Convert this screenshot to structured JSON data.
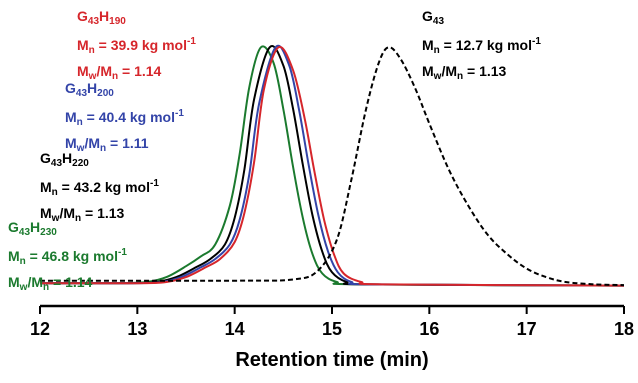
{
  "chart_data": {
    "type": "line",
    "title": "",
    "xlabel": "Retention time (min)",
    "ylabel": "",
    "xlim": [
      12,
      18
    ],
    "ylim": [
      0,
      1.05
    ],
    "xticks": [
      "12",
      "13",
      "14",
      "15",
      "16",
      "17",
      "18"
    ],
    "grid": false,
    "legend": "none",
    "series": [
      {
        "name": "G43H230",
        "color": "#1b7a2e",
        "dash": "solid",
        "points": [
          [
            12.0,
            0.02
          ],
          [
            12.8,
            0.02
          ],
          [
            13.1,
            0.025
          ],
          [
            13.3,
            0.045
          ],
          [
            13.5,
            0.09
          ],
          [
            13.65,
            0.13
          ],
          [
            13.8,
            0.18
          ],
          [
            13.95,
            0.34
          ],
          [
            14.05,
            0.55
          ],
          [
            14.15,
            0.83
          ],
          [
            14.27,
            0.995
          ],
          [
            14.4,
            0.93
          ],
          [
            14.5,
            0.74
          ],
          [
            14.6,
            0.5
          ],
          [
            14.7,
            0.29
          ],
          [
            14.8,
            0.14
          ],
          [
            14.9,
            0.06
          ],
          [
            15.05,
            0.025
          ],
          [
            15.3,
            0.015
          ],
          [
            18.0,
            0.01
          ]
        ]
      },
      {
        "name": "G43H220",
        "color": "#000000",
        "dash": "solid",
        "points": [
          [
            12.0,
            0.02
          ],
          [
            12.9,
            0.02
          ],
          [
            13.2,
            0.025
          ],
          [
            13.4,
            0.045
          ],
          [
            13.6,
            0.085
          ],
          [
            13.75,
            0.12
          ],
          [
            13.9,
            0.18
          ],
          [
            14.0,
            0.29
          ],
          [
            14.1,
            0.49
          ],
          [
            14.2,
            0.78
          ],
          [
            14.36,
            0.995
          ],
          [
            14.5,
            0.92
          ],
          [
            14.6,
            0.74
          ],
          [
            14.7,
            0.51
          ],
          [
            14.8,
            0.3
          ],
          [
            14.9,
            0.15
          ],
          [
            15.0,
            0.065
          ],
          [
            15.15,
            0.025
          ],
          [
            15.4,
            0.015
          ],
          [
            18.0,
            0.01
          ]
        ]
      },
      {
        "name": "G43H200",
        "color": "#3344a8",
        "dash": "solid",
        "points": [
          [
            12.0,
            0.02
          ],
          [
            12.95,
            0.02
          ],
          [
            13.25,
            0.025
          ],
          [
            13.45,
            0.045
          ],
          [
            13.65,
            0.085
          ],
          [
            13.8,
            0.12
          ],
          [
            13.95,
            0.18
          ],
          [
            14.05,
            0.28
          ],
          [
            14.15,
            0.47
          ],
          [
            14.25,
            0.76
          ],
          [
            14.42,
            0.995
          ],
          [
            14.56,
            0.92
          ],
          [
            14.66,
            0.74
          ],
          [
            14.76,
            0.51
          ],
          [
            14.86,
            0.3
          ],
          [
            14.96,
            0.15
          ],
          [
            15.06,
            0.065
          ],
          [
            15.2,
            0.025
          ],
          [
            15.45,
            0.015
          ],
          [
            18.0,
            0.01
          ]
        ]
      },
      {
        "name": "G43H190",
        "color": "#d6262b",
        "dash": "solid",
        "points": [
          [
            12.0,
            0.02
          ],
          [
            13.0,
            0.02
          ],
          [
            13.3,
            0.025
          ],
          [
            13.5,
            0.045
          ],
          [
            13.7,
            0.085
          ],
          [
            13.85,
            0.12
          ],
          [
            14.0,
            0.19
          ],
          [
            14.1,
            0.31
          ],
          [
            14.2,
            0.52
          ],
          [
            14.3,
            0.82
          ],
          [
            14.45,
            0.995
          ],
          [
            14.6,
            0.9
          ],
          [
            14.72,
            0.7
          ],
          [
            14.82,
            0.48
          ],
          [
            14.92,
            0.28
          ],
          [
            15.02,
            0.14
          ],
          [
            15.12,
            0.06
          ],
          [
            15.3,
            0.025
          ],
          [
            15.55,
            0.015
          ],
          [
            18.0,
            0.01
          ]
        ]
      },
      {
        "name": "G43",
        "color": "#000000",
        "dash": "dashed",
        "points": [
          [
            12.0,
            0.03
          ],
          [
            14.0,
            0.03
          ],
          [
            14.6,
            0.035
          ],
          [
            14.85,
            0.07
          ],
          [
            15.05,
            0.2
          ],
          [
            15.2,
            0.45
          ],
          [
            15.35,
            0.74
          ],
          [
            15.48,
            0.93
          ],
          [
            15.58,
            0.995
          ],
          [
            15.7,
            0.95
          ],
          [
            15.85,
            0.83
          ],
          [
            16.0,
            0.68
          ],
          [
            16.2,
            0.49
          ],
          [
            16.4,
            0.34
          ],
          [
            16.6,
            0.22
          ],
          [
            16.8,
            0.14
          ],
          [
            17.0,
            0.08
          ],
          [
            17.2,
            0.045
          ],
          [
            17.4,
            0.025
          ],
          [
            17.7,
            0.015
          ],
          [
            18.0,
            0.012
          ]
        ]
      }
    ],
    "annotations": [
      {
        "id": "g43h190",
        "color": "#d6262b",
        "title": "G",
        "t_sub1": "43",
        "t_mid": "H",
        "t_sub2": "190",
        "mn_pre": "M",
        "mn_sub": "n",
        "mn_val": " = 39.9 kg mol",
        "mn_sup": "-1",
        "d_pre1": "M",
        "d_sub1": "w",
        "d_mid": "/M",
        "d_sub2": "n",
        "d_val": " = 1.14"
      },
      {
        "id": "g43h200",
        "color": "#3344a8",
        "title": "G",
        "t_sub1": "43",
        "t_mid": "H",
        "t_sub2": "200",
        "mn_pre": "M",
        "mn_sub": "n",
        "mn_val": " = 40.4 kg mol",
        "mn_sup": "-1",
        "d_pre1": "M",
        "d_sub1": "w",
        "d_mid": "/M",
        "d_sub2": "n",
        "d_val": " = 1.11"
      },
      {
        "id": "g43h220",
        "color": "#000000",
        "title": "G",
        "t_sub1": "43",
        "t_mid": "H",
        "t_sub2": "220",
        "mn_pre": "M",
        "mn_sub": "n",
        "mn_val": " = 43.2 kg mol",
        "mn_sup": "-1",
        "d_pre1": "M",
        "d_sub1": "w",
        "d_mid": "/M",
        "d_sub2": "n",
        "d_val": " = 1.13"
      },
      {
        "id": "g43h230",
        "color": "#1b7a2e",
        "title": "G",
        "t_sub1": "43",
        "t_mid": "H",
        "t_sub2": "230",
        "mn_pre": "M",
        "mn_sub": "n",
        "mn_val": " = 46.8 kg mol",
        "mn_sup": "-1",
        "d_pre1": "M",
        "d_sub1": "w",
        "d_mid": "/M",
        "d_sub2": "n",
        "d_val": " = 1.14"
      },
      {
        "id": "g43",
        "color": "#000000",
        "title": "G",
        "t_sub1": "43",
        "t_mid": "",
        "t_sub2": "",
        "mn_pre": "M",
        "mn_sub": "n",
        "mn_val": " = 12.7 kg mol",
        "mn_sup": "-1",
        "d_pre1": "M",
        "d_sub1": "w",
        "d_mid": "/M",
        "d_sub2": "n",
        "d_val": " = 1.13"
      }
    ]
  }
}
